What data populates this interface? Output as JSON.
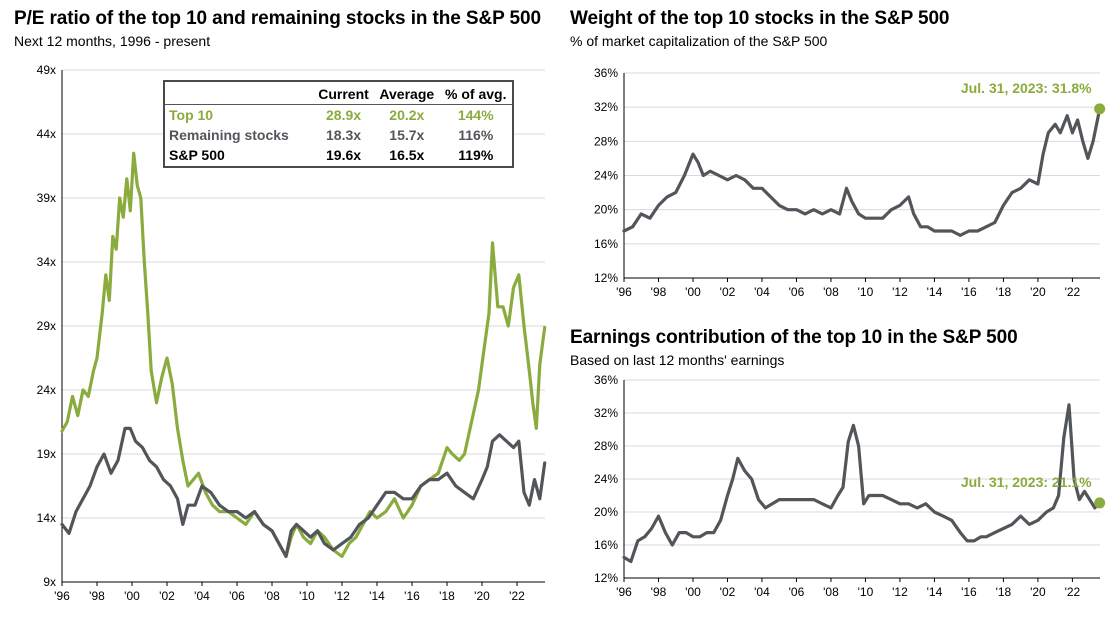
{
  "colors": {
    "top10": "#8aab3e",
    "remaining": "#52565a",
    "sp500": "#000000",
    "grid": "#d9d9d9"
  },
  "panel_left": {
    "title": "P/E ratio of the top 10 and remaining stocks in the S&P 500",
    "subtitle": "Next 12 months, 1996 - present"
  },
  "panel_top_right": {
    "title": "Weight of the top 10 stocks in the S&P 500",
    "subtitle": "% of market capitalization of the S&P 500",
    "annotation": "Jul. 31, 2023: 31.8%"
  },
  "panel_bottom_right": {
    "title": "Earnings contribution of the top 10 in the S&P 500",
    "subtitle": "Based on last 12 months' earnings",
    "annotation": "Jul. 31, 2023: 21.1%"
  },
  "stats_table": {
    "headers": [
      "Current",
      "Average",
      "% of avg."
    ],
    "rows": [
      {
        "label": "Top 10",
        "current": "28.9x",
        "average": "20.2x",
        "pct": "144%"
      },
      {
        "label": "Remaining stocks",
        "current": "18.3x",
        "average": "15.7x",
        "pct": "116%"
      },
      {
        "label": "S&P 500",
        "current": "19.6x",
        "average": "16.5x",
        "pct": "119%"
      }
    ]
  },
  "chart_data": [
    {
      "type": "line",
      "title": "P/E ratio of the top 10 and remaining stocks in the S&P 500",
      "subtitle": "Next 12 months, 1996 - present",
      "x_ticks": [
        "'96",
        "'98",
        "'00",
        "'02",
        "'04",
        "'06",
        "'08",
        "'10",
        "'12",
        "'14",
        "'16",
        "'18",
        "'20",
        "'22"
      ],
      "xlim": [
        1996,
        2023.6
      ],
      "y_ticks": [
        "49x",
        "44x",
        "39x",
        "34x",
        "29x",
        "24x",
        "19x",
        "14x",
        "9x"
      ],
      "ylim": [
        9,
        49
      ],
      "grid": "horizontal",
      "series": [
        {
          "name": "Top 10",
          "color_key": "top10",
          "x": [
            1996,
            1996.3,
            1996.6,
            1996.9,
            1997.2,
            1997.5,
            1997.8,
            1998.0,
            1998.3,
            1998.5,
            1998.7,
            1998.9,
            1999.1,
            1999.3,
            1999.5,
            1999.7,
            1999.9,
            2000.1,
            2000.3,
            2000.5,
            2000.7,
            2000.9,
            2001.1,
            2001.4,
            2001.7,
            2002.0,
            2002.3,
            2002.6,
            2002.9,
            2003.2,
            2003.5,
            2003.8,
            2004.2,
            2004.6,
            2005.0,
            2005.5,
            2006.0,
            2006.5,
            2007.0,
            2007.5,
            2008.0,
            2008.4,
            2008.8,
            2009.1,
            2009.4,
            2009.8,
            2010.2,
            2010.6,
            2011.0,
            2011.5,
            2012.0,
            2012.4,
            2012.8,
            2013.2,
            2013.6,
            2014.0,
            2014.5,
            2015.0,
            2015.5,
            2016.0,
            2016.5,
            2017.0,
            2017.5,
            2018.0,
            2018.3,
            2018.7,
            2019.0,
            2019.4,
            2019.8,
            2020.1,
            2020.4,
            2020.6,
            2020.9,
            2021.2,
            2021.5,
            2021.8,
            2022.1,
            2022.4,
            2022.7,
            2022.9,
            2023.1,
            2023.3,
            2023.58
          ],
          "y": [
            20.8,
            21.5,
            23.5,
            22.0,
            24.0,
            23.5,
            25.5,
            26.5,
            30.0,
            33.0,
            31.0,
            36.0,
            35.0,
            39.0,
            37.5,
            40.5,
            38.0,
            42.5,
            40.0,
            39.0,
            34.0,
            30.0,
            25.5,
            23.0,
            25.0,
            26.5,
            24.5,
            21.0,
            18.5,
            16.5,
            17.0,
            17.5,
            16.0,
            15.0,
            14.5,
            14.5,
            14.0,
            13.5,
            14.5,
            13.5,
            13.0,
            12.0,
            11.0,
            12.5,
            13.5,
            12.5,
            12.0,
            13.0,
            12.5,
            11.5,
            11.0,
            12.0,
            12.5,
            13.5,
            14.5,
            14.0,
            14.5,
            15.5,
            14.0,
            15.0,
            16.5,
            17.0,
            17.5,
            19.5,
            19.0,
            18.5,
            19.0,
            21.5,
            24.0,
            27.0,
            30.0,
            35.5,
            30.5,
            30.5,
            29.0,
            32.0,
            33.0,
            29.0,
            25.5,
            23.0,
            21.0,
            26.0,
            28.9
          ]
        },
        {
          "name": "Remaining stocks",
          "color_key": "remaining",
          "x": [
            1996,
            1996.4,
            1996.8,
            1997.2,
            1997.6,
            1998.0,
            1998.4,
            1998.8,
            1999.2,
            1999.6,
            1999.9,
            2000.2,
            2000.6,
            2001.0,
            2001.4,
            2001.8,
            2002.2,
            2002.6,
            2002.9,
            2003.2,
            2003.6,
            2004.0,
            2004.5,
            2005.0,
            2005.5,
            2006.0,
            2006.5,
            2007.0,
            2007.5,
            2008.0,
            2008.4,
            2008.8,
            2009.1,
            2009.4,
            2009.8,
            2010.2,
            2010.6,
            2011.0,
            2011.5,
            2012.0,
            2012.5,
            2013.0,
            2013.5,
            2014.0,
            2014.5,
            2015.0,
            2015.5,
            2016.0,
            2016.5,
            2017.0,
            2017.5,
            2018.0,
            2018.5,
            2019.0,
            2019.5,
            2020.0,
            2020.3,
            2020.6,
            2021.0,
            2021.4,
            2021.8,
            2022.1,
            2022.4,
            2022.7,
            2023.0,
            2023.3,
            2023.58
          ],
          "y": [
            13.5,
            12.8,
            14.5,
            15.5,
            16.5,
            18.0,
            19.0,
            17.5,
            18.5,
            21.0,
            21.0,
            20.0,
            19.5,
            18.5,
            18.0,
            17.0,
            16.5,
            15.5,
            13.5,
            15.0,
            15.0,
            16.5,
            16.0,
            15.0,
            14.5,
            14.5,
            14.0,
            14.5,
            13.5,
            13.0,
            12.0,
            11.0,
            13.0,
            13.5,
            13.0,
            12.5,
            13.0,
            12.0,
            11.5,
            12.0,
            12.5,
            13.5,
            14.0,
            15.0,
            16.0,
            16.0,
            15.5,
            15.5,
            16.5,
            17.0,
            17.0,
            17.5,
            16.5,
            16.0,
            15.5,
            17.0,
            18.0,
            20.0,
            20.5,
            20.0,
            19.5,
            20.0,
            16.0,
            15.0,
            17.0,
            15.5,
            18.3
          ]
        },
        {
          "name": "S&P 500",
          "color_key": "sp500"
        }
      ]
    },
    {
      "type": "line",
      "title": "Weight of the top 10 stocks in the S&P 500",
      "subtitle": "% of market capitalization of the S&P 500",
      "x_ticks": [
        "'96",
        "'98",
        "'00",
        "'02",
        "'04",
        "'06",
        "'08",
        "'10",
        "'12",
        "'14",
        "'16",
        "'18",
        "'20",
        "'22"
      ],
      "xlim": [
        1996,
        2023.6
      ],
      "y_ticks": [
        "36%",
        "32%",
        "28%",
        "24%",
        "20%",
        "16%",
        "12%"
      ],
      "ylim": [
        12,
        36
      ],
      "grid": "horizontal",
      "series": [
        {
          "name": "Top 10 weight",
          "color_key": "remaining",
          "x": [
            1996,
            1996.5,
            1997,
            1997.5,
            1998,
            1998.5,
            1999,
            1999.5,
            2000,
            2000.3,
            2000.6,
            2001,
            2001.5,
            2002,
            2002.5,
            2003,
            2003.5,
            2004,
            2004.5,
            2005,
            2005.5,
            2006,
            2006.5,
            2007,
            2007.5,
            2008,
            2008.5,
            2008.9,
            2009.2,
            2009.6,
            2010,
            2010.5,
            2011,
            2011.5,
            2012,
            2012.5,
            2012.8,
            2013.2,
            2013.6,
            2014,
            2014.5,
            2015,
            2015.5,
            2016,
            2016.5,
            2017,
            2017.5,
            2018,
            2018.5,
            2019,
            2019.5,
            2020,
            2020.3,
            2020.6,
            2021,
            2021.3,
            2021.7,
            2022,
            2022.3,
            2022.6,
            2022.9,
            2023.2,
            2023.58
          ],
          "y": [
            17.5,
            18.0,
            19.5,
            19.0,
            20.5,
            21.5,
            22.0,
            24.0,
            26.5,
            25.5,
            24.0,
            24.5,
            24.0,
            23.5,
            24.0,
            23.5,
            22.5,
            22.5,
            21.5,
            20.5,
            20.0,
            20.0,
            19.5,
            20.0,
            19.5,
            20.0,
            19.5,
            22.5,
            21.0,
            19.5,
            19.0,
            19.0,
            19.0,
            20.0,
            20.5,
            21.5,
            19.5,
            18.0,
            18.0,
            17.5,
            17.5,
            17.5,
            17.0,
            17.5,
            17.5,
            18.0,
            18.5,
            20.5,
            22.0,
            22.5,
            23.5,
            23.0,
            26.5,
            29.0,
            30.0,
            29.0,
            31.0,
            29.0,
            30.5,
            28.0,
            26.0,
            28.0,
            31.8
          ]
        }
      ],
      "annotation": "Jul. 31, 2023: 31.8%"
    },
    {
      "type": "line",
      "title": "Earnings contribution of the top 10 in the S&P 500",
      "subtitle": "Based on last 12 months' earnings",
      "x_ticks": [
        "'96",
        "'98",
        "'00",
        "'02",
        "'04",
        "'06",
        "'08",
        "'10",
        "'12",
        "'14",
        "'16",
        "'18",
        "'20",
        "'22"
      ],
      "xlim": [
        1996,
        2023.6
      ],
      "y_ticks": [
        "36%",
        "32%",
        "28%",
        "24%",
        "20%",
        "16%",
        "12%"
      ],
      "ylim": [
        12,
        36
      ],
      "grid": "horizontal",
      "series": [
        {
          "name": "Top 10 earnings contribution",
          "color_key": "remaining",
          "x": [
            1996,
            1996.4,
            1996.8,
            1997.2,
            1997.6,
            1998.0,
            1998.4,
            1998.8,
            1999.2,
            1999.6,
            2000.0,
            2000.4,
            2000.8,
            2001.2,
            2001.6,
            2002.0,
            2002.3,
            2002.6,
            2003.0,
            2003.4,
            2003.8,
            2004.2,
            2004.6,
            2005.0,
            2005.5,
            2006.0,
            2006.5,
            2007.0,
            2007.5,
            2008.0,
            2008.4,
            2008.7,
            2009.0,
            2009.3,
            2009.6,
            2009.9,
            2010.2,
            2010.6,
            2011.0,
            2011.5,
            2012.0,
            2012.5,
            2013.0,
            2013.5,
            2014.0,
            2014.5,
            2015.0,
            2015.5,
            2015.9,
            2016.3,
            2016.7,
            2017.0,
            2017.5,
            2018.0,
            2018.5,
            2019.0,
            2019.5,
            2020.0,
            2020.5,
            2020.9,
            2021.2,
            2021.5,
            2021.8,
            2022.1,
            2022.4,
            2022.7,
            2023.0,
            2023.3,
            2023.58
          ],
          "y": [
            14.5,
            14.0,
            16.5,
            17.0,
            18.0,
            19.5,
            17.5,
            16.0,
            17.5,
            17.5,
            17.0,
            17.0,
            17.5,
            17.5,
            19.0,
            22.0,
            24.0,
            26.5,
            25.0,
            24.0,
            21.5,
            20.5,
            21.0,
            21.5,
            21.5,
            21.5,
            21.5,
            21.5,
            21.0,
            20.5,
            22.0,
            23.0,
            28.5,
            30.5,
            28.0,
            21.0,
            22.0,
            22.0,
            22.0,
            21.5,
            21.0,
            21.0,
            20.5,
            21.0,
            20.0,
            19.5,
            19.0,
            17.5,
            16.5,
            16.5,
            17.0,
            17.0,
            17.5,
            18.0,
            18.5,
            19.5,
            18.5,
            19.0,
            20.0,
            20.5,
            22.0,
            29.0,
            33.0,
            24.0,
            21.5,
            22.5,
            21.5,
            20.5,
            21.1
          ]
        }
      ],
      "annotation": "Jul. 31, 2023: 21.1%"
    }
  ]
}
